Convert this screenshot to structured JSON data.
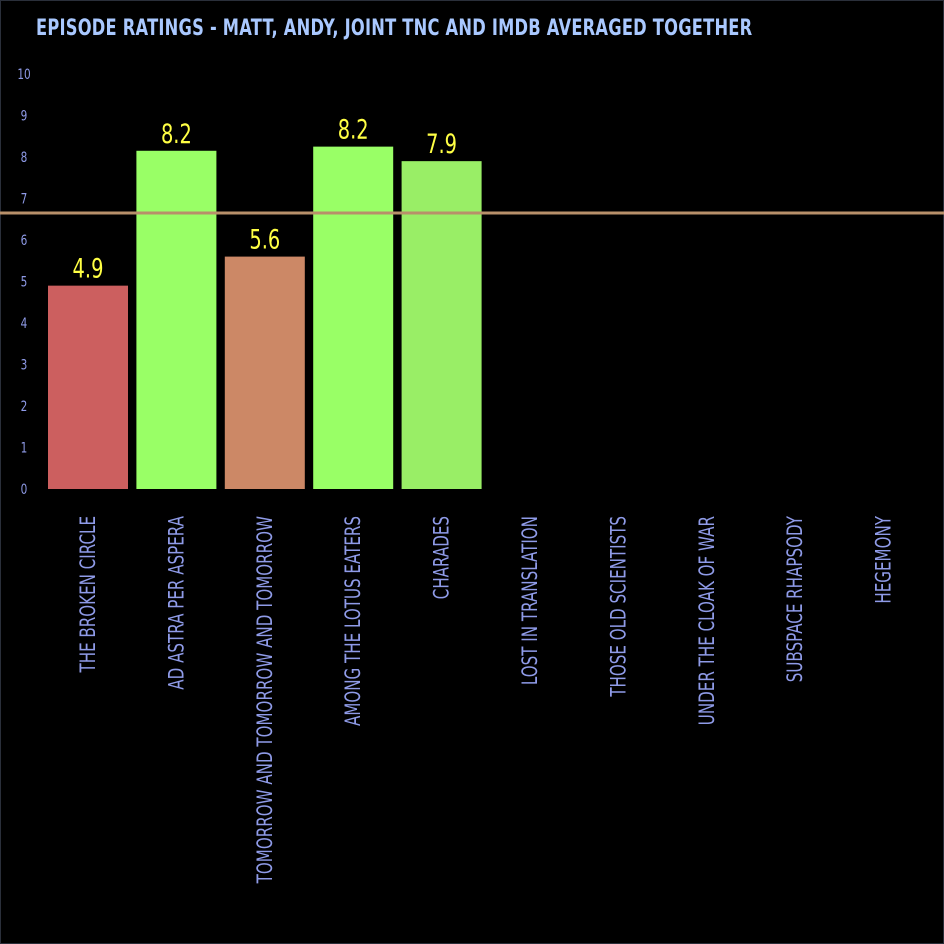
{
  "chart_data": {
    "type": "bar",
    "title": "EPISODE RATINGS - MATT, ANDY, JOINT TNC AND IMDB AVERAGED TOGETHER",
    "xlabel": "",
    "ylabel": "",
    "ylim": [
      0,
      10
    ],
    "yticks": [
      0,
      1,
      2,
      3,
      4,
      5,
      6,
      7,
      8,
      9,
      10
    ],
    "grid": false,
    "categories": [
      "THE BROKEN CIRCLE",
      "AD ASTRA PER ASPERA",
      "TOMORROW AND TOMORROW AND TOMORROW",
      "AMONG THE LOTUS EATERS",
      "CHARADES",
      "LOST IN TRANSLATION",
      "THOSE OLD SCIENTISTS",
      "UNDER THE CLOAK OF WAR",
      "SUBSPACE RHAPSODY",
      "HEGEMONY"
    ],
    "values": [
      4.9,
      8.15,
      5.6,
      8.25,
      7.9,
      null,
      null,
      null,
      null,
      null
    ],
    "data_labels": [
      "4.9",
      "8.2",
      "5.6",
      "8.2",
      "7.9",
      "",
      "",
      "",
      "",
      ""
    ],
    "bar_colors": [
      "#cc5f5f",
      "#99ff66",
      "#cc8866",
      "#99ff66",
      "#99ee66",
      "",
      "",
      "",
      "",
      ""
    ],
    "reference_line": {
      "value": 6.65,
      "color": "#b8906a"
    },
    "colors": {
      "background": "#000000",
      "title": "#a9c8ff",
      "axis_text": "#8f9be8",
      "data_label": "#ffff44"
    }
  }
}
